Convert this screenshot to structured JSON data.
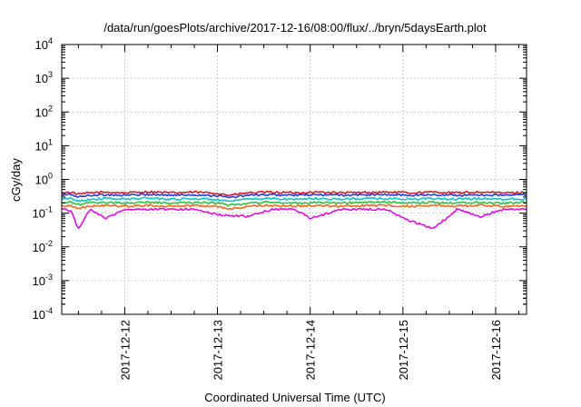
{
  "chart_data": {
    "type": "line",
    "title": "/data/run/goesPlots/archive/2017-12-16/08:00/flux/../bryn/5daysEarth.plot",
    "xlabel": "Coordinated Universal Time (UTC)",
    "ylabel": "cGy/day",
    "yscale": "log",
    "ylim": [
      0.0001,
      10000
    ],
    "xlim": [
      "2017-12-11T07:41:00Z",
      "2017-12-16T08:00:00Z"
    ],
    "x_ticks": [
      "2017-12-12",
      "2017-12-13",
      "2017-12-14",
      "2017-12-15",
      "2017-12-16"
    ],
    "y_ticks": [
      {
        "base": "10",
        "exp": "4"
      },
      {
        "base": "10",
        "exp": "3"
      },
      {
        "base": "10",
        "exp": "2"
      },
      {
        "base": "10",
        "exp": "1"
      },
      {
        "base": "10",
        "exp": "0"
      },
      {
        "base": "10",
        "exp": "-1"
      },
      {
        "base": "10",
        "exp": "-2"
      },
      {
        "base": "10",
        "exp": "-3"
      },
      {
        "base": "10",
        "exp": "-4"
      }
    ],
    "grid": true,
    "legend": "none",
    "series": [
      {
        "color": "#d01c2c",
        "base": 0.42,
        "values": [
          [
            "2017-12-11T08:00:00Z",
            0.4
          ],
          [
            "2017-12-11T10:00:00Z",
            0.42
          ],
          [
            "2017-12-11T12:00:00Z",
            0.36
          ],
          [
            "2017-12-11T15:00:00Z",
            0.4
          ],
          [
            "2017-12-11T19:00:00Z",
            0.42
          ],
          [
            "2017-12-12T00:00:00Z",
            0.4
          ],
          [
            "2017-12-12T06:00:00Z",
            0.43
          ],
          [
            "2017-12-12T12:00:00Z",
            0.4
          ],
          [
            "2017-12-12T18:00:00Z",
            0.42
          ],
          [
            "2017-12-13T00:00:00Z",
            0.39
          ],
          [
            "2017-12-13T03:00:00Z",
            0.34
          ],
          [
            "2017-12-13T08:00:00Z",
            0.4
          ],
          [
            "2017-12-13T14:00:00Z",
            0.42
          ],
          [
            "2017-12-13T20:00:00Z",
            0.4
          ],
          [
            "2017-12-14T02:00:00Z",
            0.42
          ],
          [
            "2017-12-14T08:00:00Z",
            0.4
          ],
          [
            "2017-12-14T14:00:00Z",
            0.41
          ],
          [
            "2017-12-14T20:00:00Z",
            0.42
          ],
          [
            "2017-12-15T02:00:00Z",
            0.4
          ],
          [
            "2017-12-15T08:00:00Z",
            0.42
          ],
          [
            "2017-12-15T14:00:00Z",
            0.4
          ],
          [
            "2017-12-15T20:00:00Z",
            0.42
          ],
          [
            "2017-12-16T02:00:00Z",
            0.4
          ],
          [
            "2017-12-16T08:00:00Z",
            0.41
          ]
        ]
      },
      {
        "color": "#2040d8",
        "base": 0.35,
        "values": [
          [
            "2017-12-11T08:00:00Z",
            0.34
          ],
          [
            "2017-12-11T10:00:00Z",
            0.36
          ],
          [
            "2017-12-11T12:00:00Z",
            0.3
          ],
          [
            "2017-12-11T15:00:00Z",
            0.34
          ],
          [
            "2017-12-11T19:00:00Z",
            0.35
          ],
          [
            "2017-12-12T00:00:00Z",
            0.34
          ],
          [
            "2017-12-12T06:00:00Z",
            0.36
          ],
          [
            "2017-12-12T12:00:00Z",
            0.34
          ],
          [
            "2017-12-12T18:00:00Z",
            0.35
          ],
          [
            "2017-12-13T00:00:00Z",
            0.33
          ],
          [
            "2017-12-13T03:00:00Z",
            0.29
          ],
          [
            "2017-12-13T08:00:00Z",
            0.34
          ],
          [
            "2017-12-13T14:00:00Z",
            0.35
          ],
          [
            "2017-12-13T20:00:00Z",
            0.34
          ],
          [
            "2017-12-14T02:00:00Z",
            0.35
          ],
          [
            "2017-12-14T08:00:00Z",
            0.34
          ],
          [
            "2017-12-14T14:00:00Z",
            0.35
          ],
          [
            "2017-12-14T20:00:00Z",
            0.35
          ],
          [
            "2017-12-15T02:00:00Z",
            0.34
          ],
          [
            "2017-12-15T08:00:00Z",
            0.35
          ],
          [
            "2017-12-15T14:00:00Z",
            0.34
          ],
          [
            "2017-12-15T20:00:00Z",
            0.35
          ],
          [
            "2017-12-16T02:00:00Z",
            0.34
          ],
          [
            "2017-12-16T08:00:00Z",
            0.35
          ]
        ]
      },
      {
        "color": "#14c0c8",
        "base": 0.27,
        "values": [
          [
            "2017-12-11T08:00:00Z",
            0.26
          ],
          [
            "2017-12-11T10:00:00Z",
            0.27
          ],
          [
            "2017-12-11T12:00:00Z",
            0.23
          ],
          [
            "2017-12-11T15:00:00Z",
            0.26
          ],
          [
            "2017-12-11T19:00:00Z",
            0.27
          ],
          [
            "2017-12-12T00:00:00Z",
            0.26
          ],
          [
            "2017-12-12T06:00:00Z",
            0.28
          ],
          [
            "2017-12-12T12:00:00Z",
            0.26
          ],
          [
            "2017-12-12T18:00:00Z",
            0.27
          ],
          [
            "2017-12-13T00:00:00Z",
            0.25
          ],
          [
            "2017-12-13T03:00:00Z",
            0.22
          ],
          [
            "2017-12-13T08:00:00Z",
            0.26
          ],
          [
            "2017-12-13T14:00:00Z",
            0.27
          ],
          [
            "2017-12-13T20:00:00Z",
            0.26
          ],
          [
            "2017-12-14T02:00:00Z",
            0.27
          ],
          [
            "2017-12-14T08:00:00Z",
            0.26
          ],
          [
            "2017-12-14T14:00:00Z",
            0.27
          ],
          [
            "2017-12-14T20:00:00Z",
            0.27
          ],
          [
            "2017-12-15T02:00:00Z",
            0.26
          ],
          [
            "2017-12-15T08:00:00Z",
            0.27
          ],
          [
            "2017-12-15T14:00:00Z",
            0.26
          ],
          [
            "2017-12-15T20:00:00Z",
            0.27
          ],
          [
            "2017-12-16T02:00:00Z",
            0.26
          ],
          [
            "2017-12-16T08:00:00Z",
            0.27
          ]
        ]
      },
      {
        "color": "#30c040",
        "base": 0.21,
        "values": [
          [
            "2017-12-11T08:00:00Z",
            0.2
          ],
          [
            "2017-12-11T10:00:00Z",
            0.21
          ],
          [
            "2017-12-11T12:00:00Z",
            0.18
          ],
          [
            "2017-12-11T15:00:00Z",
            0.2
          ],
          [
            "2017-12-11T19:00:00Z",
            0.21
          ],
          [
            "2017-12-12T00:00:00Z",
            0.2
          ],
          [
            "2017-12-12T06:00:00Z",
            0.21
          ],
          [
            "2017-12-12T12:00:00Z",
            0.2
          ],
          [
            "2017-12-12T18:00:00Z",
            0.21
          ],
          [
            "2017-12-13T00:00:00Z",
            0.2
          ],
          [
            "2017-12-13T03:00:00Z",
            0.17
          ],
          [
            "2017-12-13T08:00:00Z",
            0.2
          ],
          [
            "2017-12-13T14:00:00Z",
            0.21
          ],
          [
            "2017-12-13T20:00:00Z",
            0.2
          ],
          [
            "2017-12-14T02:00:00Z",
            0.21
          ],
          [
            "2017-12-14T08:00:00Z",
            0.2
          ],
          [
            "2017-12-14T14:00:00Z",
            0.21
          ],
          [
            "2017-12-14T20:00:00Z",
            0.21
          ],
          [
            "2017-12-15T02:00:00Z",
            0.2
          ],
          [
            "2017-12-15T08:00:00Z",
            0.21
          ],
          [
            "2017-12-15T14:00:00Z",
            0.2
          ],
          [
            "2017-12-15T20:00:00Z",
            0.21
          ],
          [
            "2017-12-16T02:00:00Z",
            0.2
          ],
          [
            "2017-12-16T08:00:00Z",
            0.21
          ]
        ]
      },
      {
        "color": "#f06820",
        "base": 0.17,
        "values": [
          [
            "2017-12-11T08:00:00Z",
            0.16
          ],
          [
            "2017-12-11T10:00:00Z",
            0.17
          ],
          [
            "2017-12-11T12:00:00Z",
            0.14
          ],
          [
            "2017-12-11T15:00:00Z",
            0.16
          ],
          [
            "2017-12-11T19:00:00Z",
            0.17
          ],
          [
            "2017-12-12T00:00:00Z",
            0.16
          ],
          [
            "2017-12-12T06:00:00Z",
            0.17
          ],
          [
            "2017-12-12T12:00:00Z",
            0.16
          ],
          [
            "2017-12-12T18:00:00Z",
            0.17
          ],
          [
            "2017-12-13T00:00:00Z",
            0.16
          ],
          [
            "2017-12-13T03:00:00Z",
            0.13
          ],
          [
            "2017-12-13T08:00:00Z",
            0.16
          ],
          [
            "2017-12-13T14:00:00Z",
            0.17
          ],
          [
            "2017-12-13T20:00:00Z",
            0.16
          ],
          [
            "2017-12-14T02:00:00Z",
            0.17
          ],
          [
            "2017-12-14T08:00:00Z",
            0.16
          ],
          [
            "2017-12-14T14:00:00Z",
            0.17
          ],
          [
            "2017-12-14T20:00:00Z",
            0.17
          ],
          [
            "2017-12-15T02:00:00Z",
            0.16
          ],
          [
            "2017-12-15T08:00:00Z",
            0.17
          ],
          [
            "2017-12-15T14:00:00Z",
            0.16
          ],
          [
            "2017-12-15T20:00:00Z",
            0.17
          ],
          [
            "2017-12-16T02:00:00Z",
            0.16
          ],
          [
            "2017-12-16T08:00:00Z",
            0.17
          ]
        ]
      },
      {
        "color": "#e010e0",
        "base": 0.13,
        "values": [
          [
            "2017-12-11T08:00:00Z",
            0.13
          ],
          [
            "2017-12-11T10:00:00Z",
            0.12
          ],
          [
            "2017-12-11T12:00:00Z",
            0.035
          ],
          [
            "2017-12-11T15:00:00Z",
            0.13
          ],
          [
            "2017-12-11T19:00:00Z",
            0.07
          ],
          [
            "2017-12-12T00:00:00Z",
            0.13
          ],
          [
            "2017-12-12T06:00:00Z",
            0.13
          ],
          [
            "2017-12-12T12:00:00Z",
            0.13
          ],
          [
            "2017-12-12T18:00:00Z",
            0.13
          ],
          [
            "2017-12-13T00:00:00Z",
            0.09
          ],
          [
            "2017-12-13T08:00:00Z",
            0.08
          ],
          [
            "2017-12-13T14:00:00Z",
            0.13
          ],
          [
            "2017-12-13T20:00:00Z",
            0.13
          ],
          [
            "2017-12-14T00:00:00Z",
            0.07
          ],
          [
            "2017-12-14T08:00:00Z",
            0.13
          ],
          [
            "2017-12-14T14:00:00Z",
            0.13
          ],
          [
            "2017-12-14T20:00:00Z",
            0.13
          ],
          [
            "2017-12-15T00:00:00Z",
            0.07
          ],
          [
            "2017-12-15T08:00:00Z",
            0.035
          ],
          [
            "2017-12-15T14:00:00Z",
            0.13
          ],
          [
            "2017-12-15T20:00:00Z",
            0.08
          ],
          [
            "2017-12-16T02:00:00Z",
            0.13
          ],
          [
            "2017-12-16T08:00:00Z",
            0.13
          ]
        ]
      }
    ]
  }
}
